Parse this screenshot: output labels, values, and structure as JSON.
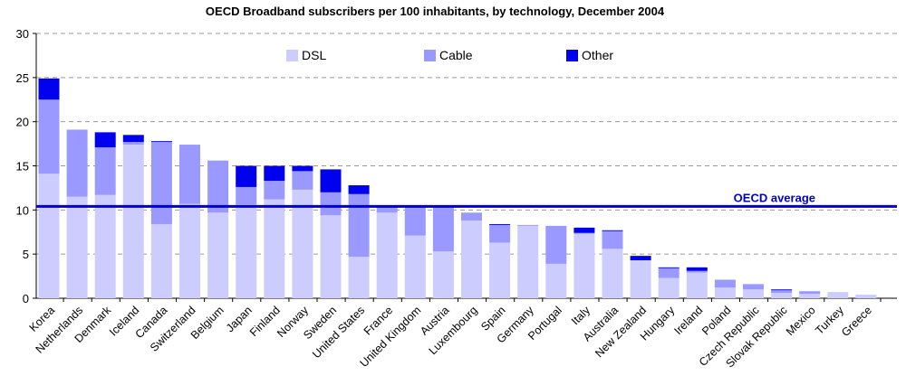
{
  "chart_data": {
    "type": "bar",
    "stacked": true,
    "title": "OECD Broadband subscribers per 100 inhabitants, by technology, December 2004",
    "xlabel": "",
    "ylabel": "",
    "ylim": [
      0,
      30
    ],
    "yticks": [
      0,
      5,
      10,
      15,
      20,
      25,
      30
    ],
    "grid": true,
    "legend_position": "top-center",
    "categories": [
      "Korea",
      "Netherlands",
      "Denmark",
      "Iceland",
      "Canada",
      "Switzerland",
      "Belgium",
      "Japan",
      "Finland",
      "Norway",
      "Sweden",
      "United States",
      "France",
      "United Kingdom",
      "Austria",
      "Luxembourg",
      "Spain",
      "Germany",
      "Portugal",
      "Italy",
      "Australia",
      "New Zealand",
      "Hungary",
      "Ireland",
      "Poland",
      "Czech Republic",
      "Slovak Republic",
      "Mexico",
      "Turkey",
      "Greece"
    ],
    "series": [
      {
        "name": "DSL",
        "color": "#ccccff",
        "values": [
          14.1,
          11.5,
          11.7,
          17.4,
          8.4,
          10.7,
          9.7,
          10.6,
          11.2,
          12.3,
          9.4,
          4.7,
          9.7,
          7.1,
          5.3,
          8.8,
          6.3,
          8.2,
          3.9,
          7.3,
          5.6,
          4.3,
          2.3,
          2.9,
          1.2,
          1.0,
          0.6,
          0.5,
          0.7,
          0.4
        ]
      },
      {
        "name": "Cable",
        "color": "#9999ff",
        "values": [
          8.4,
          7.6,
          5.4,
          0.3,
          9.3,
          6.7,
          5.9,
          2.0,
          2.1,
          2.1,
          2.6,
          7.1,
          0.6,
          3.4,
          5.2,
          0.9,
          2.0,
          0.1,
          4.3,
          0.1,
          2.0,
          0.0,
          1.1,
          0.2,
          0.9,
          0.6,
          0.3,
          0.3,
          0.0,
          0.0
        ]
      },
      {
        "name": "Other",
        "color": "#0000ee",
        "values": [
          2.4,
          0.0,
          1.7,
          0.8,
          0.1,
          0.0,
          0.0,
          2.4,
          1.7,
          0.6,
          2.6,
          1.0,
          0.0,
          0.0,
          0.0,
          0.0,
          0.1,
          0.0,
          0.0,
          0.6,
          0.1,
          0.5,
          0.1,
          0.4,
          0.0,
          0.0,
          0.1,
          0.0,
          0.0,
          0.0
        ]
      }
    ],
    "average": {
      "label": "OECD average",
      "value": 10.4,
      "color": "#0000cc"
    }
  }
}
